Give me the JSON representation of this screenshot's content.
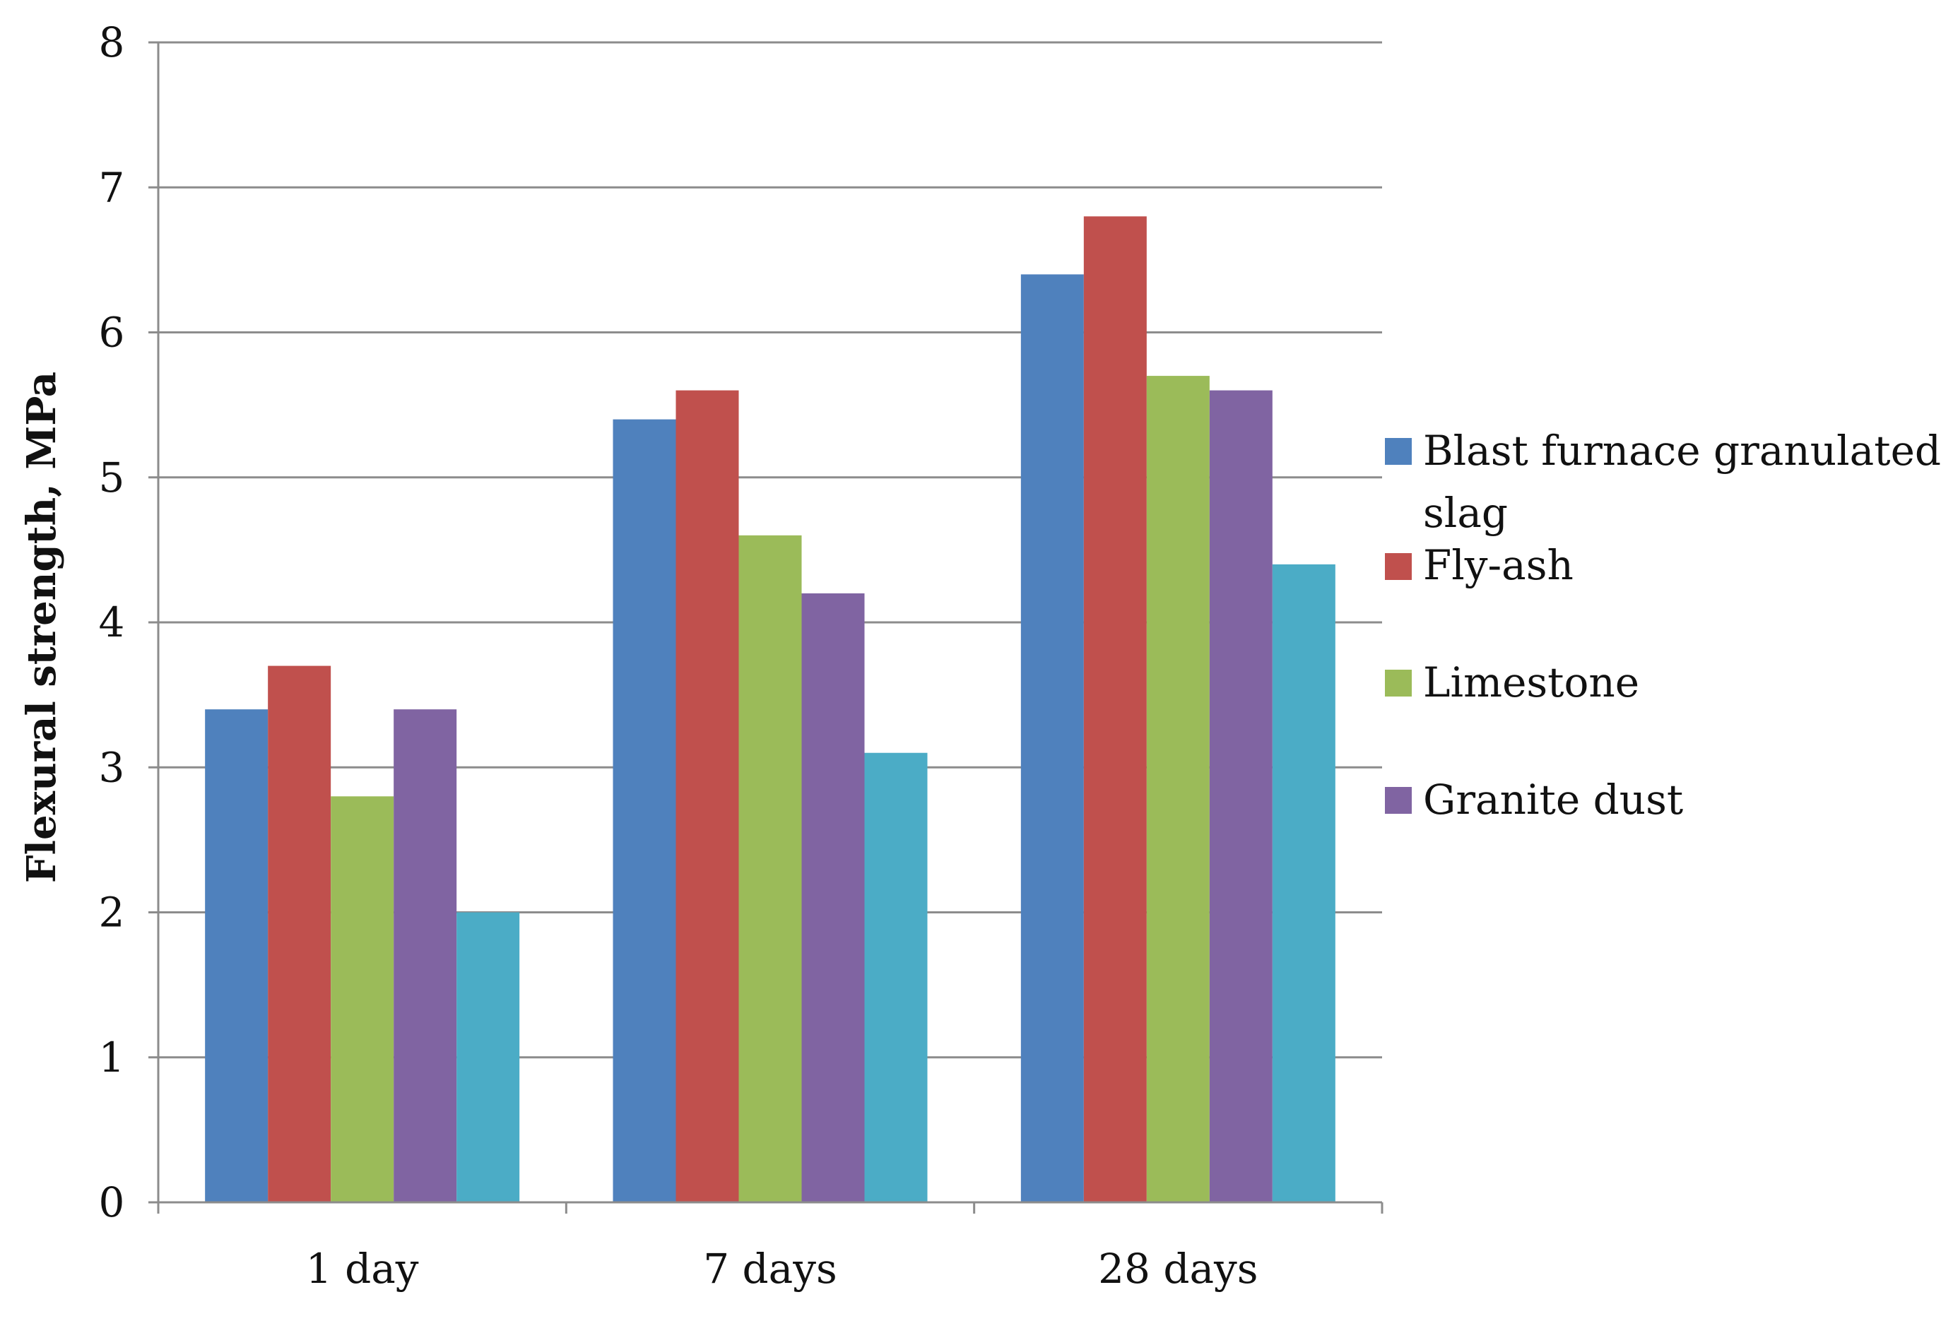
{
  "chart_data": {
    "type": "bar",
    "title": "",
    "xlabel": "",
    "ylabel": "Flexural strength, MPa",
    "ylim": [
      0,
      8
    ],
    "yticks": [
      "0",
      "1",
      "2",
      "3",
      "4",
      "5",
      "6",
      "7",
      "8"
    ],
    "grid": true,
    "legend_position": "right",
    "categories": [
      "1 day",
      "7 days",
      "28 days"
    ],
    "series": [
      {
        "name": "Blast furnace granulated slag",
        "color": "#4f81bd",
        "values": [
          3.4,
          5.4,
          6.4
        ],
        "legend_lines": [
          "Blast furnace granulated",
          "slag"
        ]
      },
      {
        "name": "Fly-ash",
        "color": "#c0504d",
        "values": [
          3.7,
          5.6,
          6.8
        ],
        "legend_lines": [
          "Fly-ash"
        ]
      },
      {
        "name": "Limestone",
        "color": "#9bbb59",
        "values": [
          2.8,
          4.6,
          5.7
        ],
        "legend_lines": [
          "Limestone"
        ]
      },
      {
        "name": "Granite dust",
        "color": "#8064a2",
        "values": [
          3.4,
          4.2,
          5.6
        ],
        "legend_lines": [
          "Granite dust"
        ]
      },
      {
        "name": "",
        "color": "#4bacc6",
        "values": [
          2.0,
          3.1,
          4.4
        ],
        "legend_lines": []
      }
    ]
  }
}
